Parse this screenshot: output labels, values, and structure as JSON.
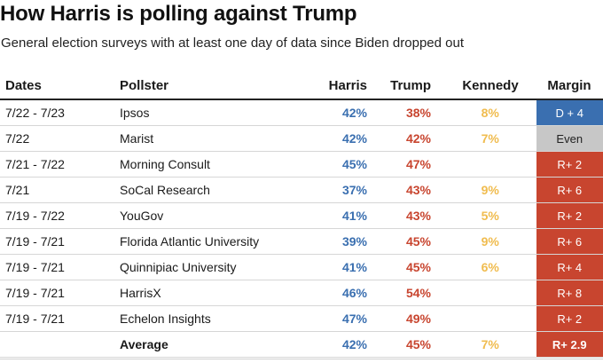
{
  "title": "How Harris is polling against Trump",
  "subtitle": "General election surveys with at least one day of data since Biden dropped out",
  "colors": {
    "harris": "#3a6fb0",
    "trump": "#c8452f",
    "kennedy": "#f0bc4f",
    "dem_margin": "#3a6fb0",
    "even_margin": "#c7c7c7",
    "rep_margin": "#c8452f"
  },
  "headers": {
    "dates": "Dates",
    "pollster": "Pollster",
    "harris": "Harris",
    "trump": "Trump",
    "kennedy": "Kennedy",
    "margin": "Margin"
  },
  "rows": [
    {
      "dates": "7/22 - 7/23",
      "pollster": "Ipsos",
      "harris": "42%",
      "trump": "38%",
      "kennedy": "8%",
      "margin": "D + 4",
      "lean": "dem"
    },
    {
      "dates": "7/22",
      "pollster": "Marist",
      "harris": "42%",
      "trump": "42%",
      "kennedy": "7%",
      "margin": "Even",
      "lean": "even"
    },
    {
      "dates": "7/21 - 7/22",
      "pollster": "Morning Consult",
      "harris": "45%",
      "trump": "47%",
      "kennedy": "",
      "margin": "R+ 2",
      "lean": "rep"
    },
    {
      "dates": "7/21",
      "pollster": "SoCal Research",
      "harris": "37%",
      "trump": "43%",
      "kennedy": "9%",
      "margin": "R+ 6",
      "lean": "rep"
    },
    {
      "dates": "7/19 - 7/22",
      "pollster": "YouGov",
      "harris": "41%",
      "trump": "43%",
      "kennedy": "5%",
      "margin": "R+ 2",
      "lean": "rep"
    },
    {
      "dates": "7/19 - 7/21",
      "pollster": "Florida Atlantic University",
      "harris": "39%",
      "trump": "45%",
      "kennedy": "9%",
      "margin": "R+ 6",
      "lean": "rep"
    },
    {
      "dates": "7/19 - 7/21",
      "pollster": "Quinnipiac University",
      "harris": "41%",
      "trump": "45%",
      "kennedy": "6%",
      "margin": "R+ 4",
      "lean": "rep"
    },
    {
      "dates": "7/19 - 7/21",
      "pollster": "HarrisX",
      "harris": "46%",
      "trump": "54%",
      "kennedy": "",
      "margin": "R+ 8",
      "lean": "rep"
    },
    {
      "dates": "7/19 - 7/21",
      "pollster": "Echelon Insights",
      "harris": "47%",
      "trump": "49%",
      "kennedy": "",
      "margin": "R+ 2",
      "lean": "rep"
    }
  ],
  "average": {
    "label": "Average",
    "harris": "42%",
    "trump": "45%",
    "kennedy": "7%",
    "margin": "R+ 2.9",
    "lean": "rep"
  }
}
